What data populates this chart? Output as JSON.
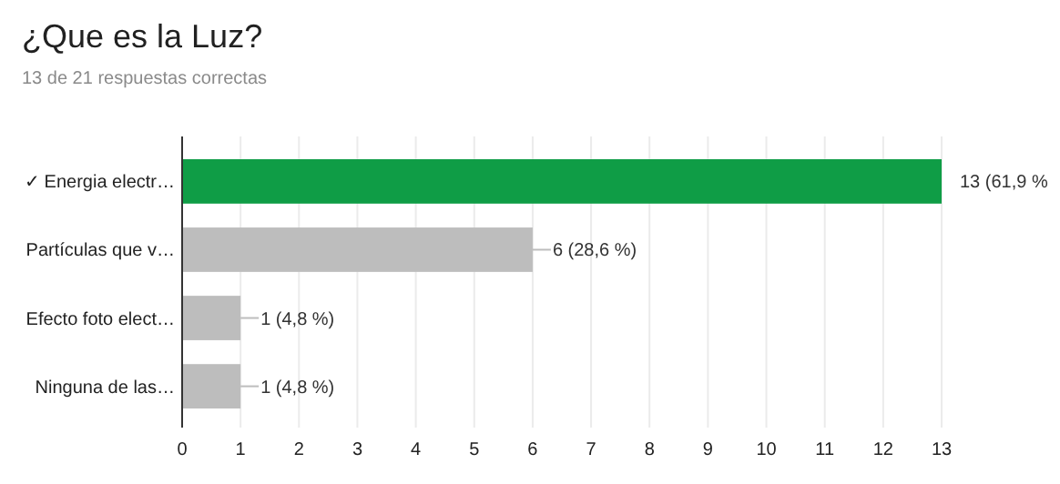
{
  "chart_data": {
    "type": "bar",
    "orientation": "horizontal",
    "title": "¿Que es la Luz?",
    "subtitle": "13 de 21 respuestas correctas",
    "categories": [
      "✓ Energia electr…",
      "Partículas que v…",
      "Efecto foto elect…",
      "Ninguna de las…"
    ],
    "values": [
      13,
      6,
      1,
      1
    ],
    "colors": [
      "#0f9d46",
      "#bdbdbd",
      "#bdbdbd",
      "#bdbdbd"
    ],
    "value_labels": [
      "13 (61,9 %",
      "6 (28,6 %)",
      "1 (4,8 %)",
      "1 (4,8 %)"
    ],
    "xlim": [
      0,
      13
    ],
    "xticks": [
      0,
      1,
      2,
      3,
      4,
      5,
      6,
      7,
      8,
      9,
      10,
      11,
      12,
      13
    ],
    "grid": "x"
  }
}
